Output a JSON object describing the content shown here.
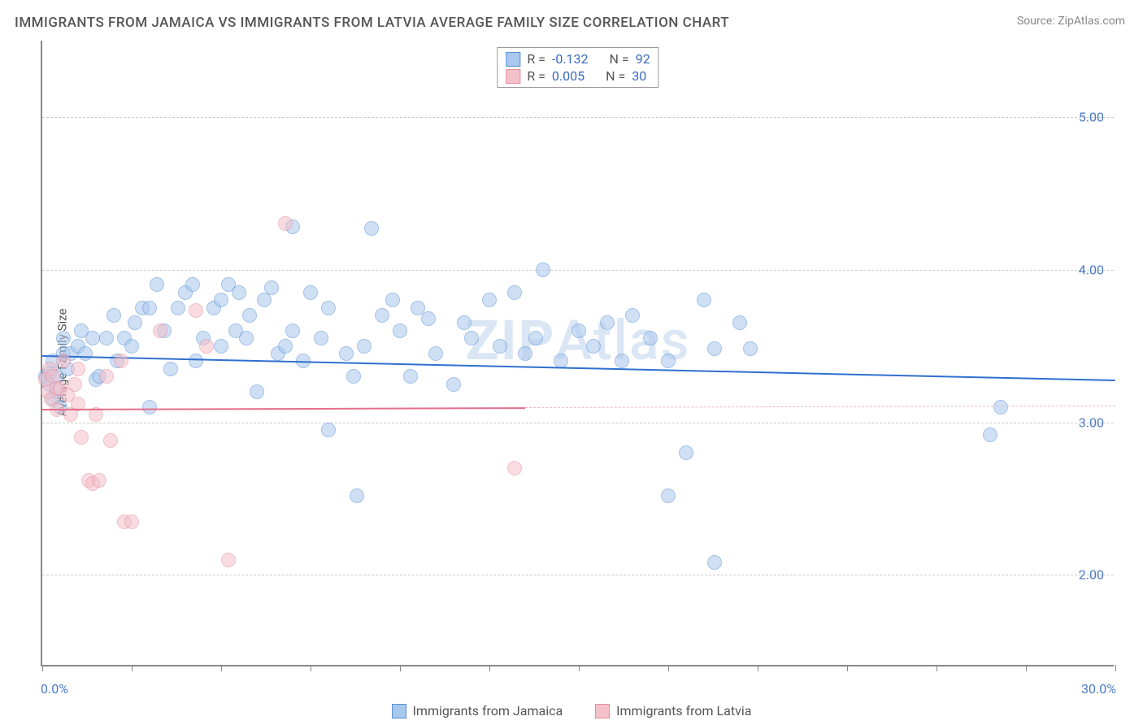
{
  "title": "IMMIGRANTS FROM JAMAICA VS IMMIGRANTS FROM LATVIA AVERAGE FAMILY SIZE CORRELATION CHART",
  "source_label": "Source: ",
  "source_value": "ZipAtlas.com",
  "y_axis_label": "Average Family Size",
  "watermark": {
    "bold": "ZIP",
    "light": "Atlas"
  },
  "chart": {
    "type": "scatter",
    "xlim": [
      0,
      30
    ],
    "ylim": [
      1.4,
      5.5
    ],
    "x_ticks_pct": [
      0,
      2.5,
      5,
      7.5,
      10,
      12.5,
      15,
      17.5,
      20,
      22.5,
      25,
      27.5,
      30
    ],
    "x_tick_labels": {
      "0": "0.0%",
      "30": "30.0%"
    },
    "y_gridlines": [
      2.0,
      3.0,
      4.0,
      5.0
    ],
    "y_tick_labels": {
      "2.0": "2.00",
      "3.0": "3.00",
      "4.0": "4.00",
      "5.0": "5.00"
    },
    "background_color": "#ffffff",
    "grid_color": "#cccccc",
    "point_radius": 9,
    "point_opacity": 0.55,
    "series": [
      {
        "name": "Immigrants from Jamaica",
        "color_fill": "#a9c8ed",
        "color_stroke": "#5a8fd6",
        "R": "-0.132",
        "N": "92",
        "trend": {
          "x1": 0,
          "y1": 3.44,
          "x2": 30,
          "y2": 3.28,
          "color": "#2f6fd0",
          "width": 2,
          "dashed_extension_color": "#2f6fd0"
        },
        "points": [
          [
            0.1,
            3.3
          ],
          [
            0.2,
            3.25
          ],
          [
            0.2,
            3.32
          ],
          [
            0.3,
            3.15
          ],
          [
            0.3,
            3.4
          ],
          [
            0.4,
            3.3
          ],
          [
            0.4,
            3.2
          ],
          [
            0.5,
            3.1
          ],
          [
            0.6,
            3.45
          ],
          [
            0.6,
            3.55
          ],
          [
            0.7,
            3.35
          ],
          [
            0.8,
            3.45
          ],
          [
            1.0,
            3.5
          ],
          [
            1.1,
            3.6
          ],
          [
            1.2,
            3.45
          ],
          [
            1.4,
            3.55
          ],
          [
            1.5,
            3.28
          ],
          [
            1.6,
            3.3
          ],
          [
            1.8,
            3.55
          ],
          [
            2.0,
            3.7
          ],
          [
            2.1,
            3.4
          ],
          [
            2.3,
            3.55
          ],
          [
            2.5,
            3.5
          ],
          [
            2.6,
            3.65
          ],
          [
            2.8,
            3.75
          ],
          [
            3.0,
            3.1
          ],
          [
            3.0,
            3.75
          ],
          [
            3.2,
            3.9
          ],
          [
            3.4,
            3.6
          ],
          [
            3.6,
            3.35
          ],
          [
            3.8,
            3.75
          ],
          [
            4.0,
            3.85
          ],
          [
            4.2,
            3.9
          ],
          [
            4.3,
            3.4
          ],
          [
            4.5,
            3.55
          ],
          [
            4.8,
            3.75
          ],
          [
            5.0,
            3.5
          ],
          [
            5.0,
            3.8
          ],
          [
            5.2,
            3.9
          ],
          [
            5.4,
            3.6
          ],
          [
            5.5,
            3.85
          ],
          [
            5.7,
            3.55
          ],
          [
            5.8,
            3.7
          ],
          [
            6.0,
            3.2
          ],
          [
            6.2,
            3.8
          ],
          [
            6.4,
            3.88
          ],
          [
            6.6,
            3.45
          ],
          [
            6.8,
            3.5
          ],
          [
            7.0,
            3.6
          ],
          [
            7.0,
            4.28
          ],
          [
            7.3,
            3.4
          ],
          [
            7.5,
            3.85
          ],
          [
            7.8,
            3.55
          ],
          [
            8.0,
            3.75
          ],
          [
            8.0,
            2.95
          ],
          [
            8.5,
            3.45
          ],
          [
            8.7,
            3.3
          ],
          [
            8.8,
            2.52
          ],
          [
            9.2,
            4.27
          ],
          [
            9.0,
            3.5
          ],
          [
            9.5,
            3.7
          ],
          [
            9.8,
            3.8
          ],
          [
            10.0,
            3.6
          ],
          [
            10.3,
            3.3
          ],
          [
            10.5,
            3.75
          ],
          [
            10.8,
            3.68
          ],
          [
            11.0,
            3.45
          ],
          [
            11.5,
            3.25
          ],
          [
            11.8,
            3.65
          ],
          [
            12.0,
            3.55
          ],
          [
            12.5,
            3.8
          ],
          [
            12.8,
            3.5
          ],
          [
            13.2,
            3.85
          ],
          [
            13.5,
            3.45
          ],
          [
            13.8,
            3.55
          ],
          [
            14.0,
            4.0
          ],
          [
            14.5,
            3.4
          ],
          [
            15.0,
            3.6
          ],
          [
            15.4,
            3.5
          ],
          [
            15.8,
            3.65
          ],
          [
            16.2,
            3.4
          ],
          [
            16.5,
            3.7
          ],
          [
            17.0,
            3.55
          ],
          [
            17.5,
            3.4
          ],
          [
            17.5,
            2.52
          ],
          [
            18.0,
            2.8
          ],
          [
            18.5,
            3.8
          ],
          [
            18.8,
            3.48
          ],
          [
            18.8,
            2.08
          ],
          [
            19.5,
            3.65
          ],
          [
            19.8,
            3.48
          ],
          [
            26.5,
            2.92
          ],
          [
            26.8,
            3.1
          ]
        ]
      },
      {
        "name": "Immigrants from Latvia",
        "color_fill": "#f4c0ca",
        "color_stroke": "#e88ba0",
        "R": "0.005",
        "N": "30",
        "trend": {
          "x1": 0,
          "y1": 3.09,
          "x2": 13.5,
          "y2": 3.1,
          "color": "#e36f8b",
          "width": 2,
          "dashed_extension_color": "#f2b6c3"
        },
        "points": [
          [
            0.1,
            3.28
          ],
          [
            0.15,
            3.2
          ],
          [
            0.2,
            3.35
          ],
          [
            0.25,
            3.15
          ],
          [
            0.3,
            3.3
          ],
          [
            0.4,
            3.22
          ],
          [
            0.4,
            3.08
          ],
          [
            0.5,
            3.22
          ],
          [
            0.6,
            3.4
          ],
          [
            0.7,
            3.18
          ],
          [
            0.8,
            3.05
          ],
          [
            0.9,
            3.25
          ],
          [
            1.0,
            3.35
          ],
          [
            1.0,
            3.12
          ],
          [
            1.1,
            2.9
          ],
          [
            1.3,
            2.62
          ],
          [
            1.4,
            2.6
          ],
          [
            1.5,
            3.05
          ],
          [
            1.6,
            2.62
          ],
          [
            1.8,
            3.3
          ],
          [
            1.9,
            2.88
          ],
          [
            2.2,
            3.4
          ],
          [
            2.3,
            2.35
          ],
          [
            2.5,
            2.35
          ],
          [
            3.3,
            3.6
          ],
          [
            4.3,
            3.73
          ],
          [
            4.6,
            3.5
          ],
          [
            5.2,
            2.1
          ],
          [
            6.8,
            4.3
          ],
          [
            13.2,
            2.7
          ]
        ]
      }
    ]
  },
  "legend_stats_labels": {
    "R": "R =",
    "N": "N ="
  },
  "legend_bottom": [
    {
      "label": "Immigrants from Jamaica",
      "fill": "#a9c8ed",
      "stroke": "#5a8fd6"
    },
    {
      "label": "Immigrants from Latvia",
      "fill": "#f4c0ca",
      "stroke": "#e88ba0"
    }
  ]
}
